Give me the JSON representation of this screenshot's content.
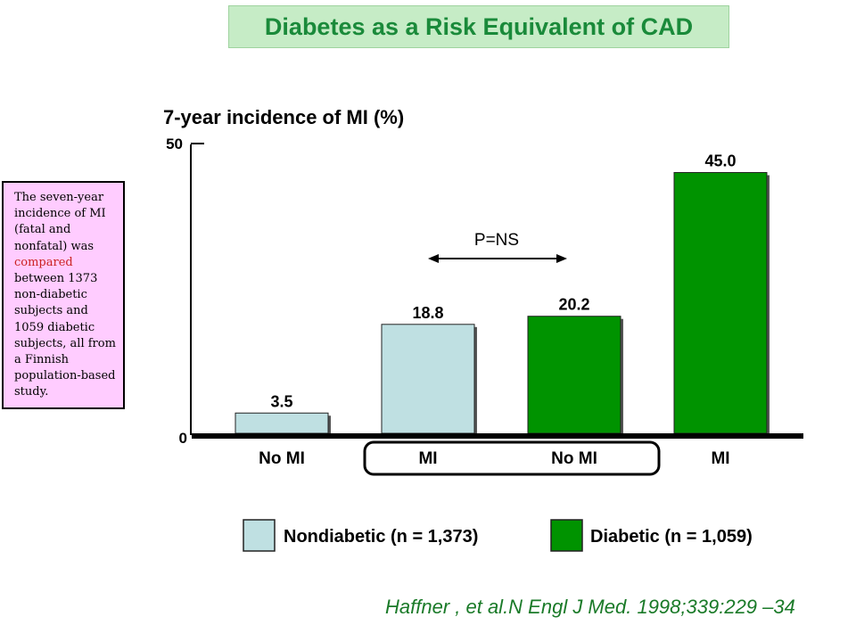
{
  "page_title": "Diabetes as a Risk Equivalent of CAD",
  "note": {
    "parts": [
      "The seven-year incidence of MI (fatal and nonfatal) was ",
      "compared",
      " between 1373 non-diabetic subjects and 1059 diabetic subjects, all from a Finnish population-based study."
    ]
  },
  "citation": "Haffner , et al.N Engl J Med. 1998;339:229 –34",
  "chart_data": {
    "type": "bar",
    "title": "7-year incidence of MI (%)",
    "ylim": [
      0,
      50
    ],
    "yticks": [
      "0",
      "50"
    ],
    "categories": [
      "No MI",
      "MI",
      "No MI",
      "MI"
    ],
    "values": [
      3.5,
      18.8,
      20.2,
      45.0
    ],
    "value_labels": [
      "3.5",
      "18.8",
      "20.2",
      "45.0"
    ],
    "bar_series": [
      "Nondiabetic (n = 1,373)",
      "Nondiabetic (n = 1,373)",
      "Diabetic (n = 1,059)",
      "Diabetic (n = 1,059)"
    ],
    "legend": [
      {
        "name": "Nondiabetic (n = 1,373)",
        "color": "#bfe0e2"
      },
      {
        "name": "Diabetic (n = 1,059)",
        "color": "#009300"
      }
    ],
    "legend_position": "bottom",
    "annotation": "P=NS",
    "grid": false
  }
}
